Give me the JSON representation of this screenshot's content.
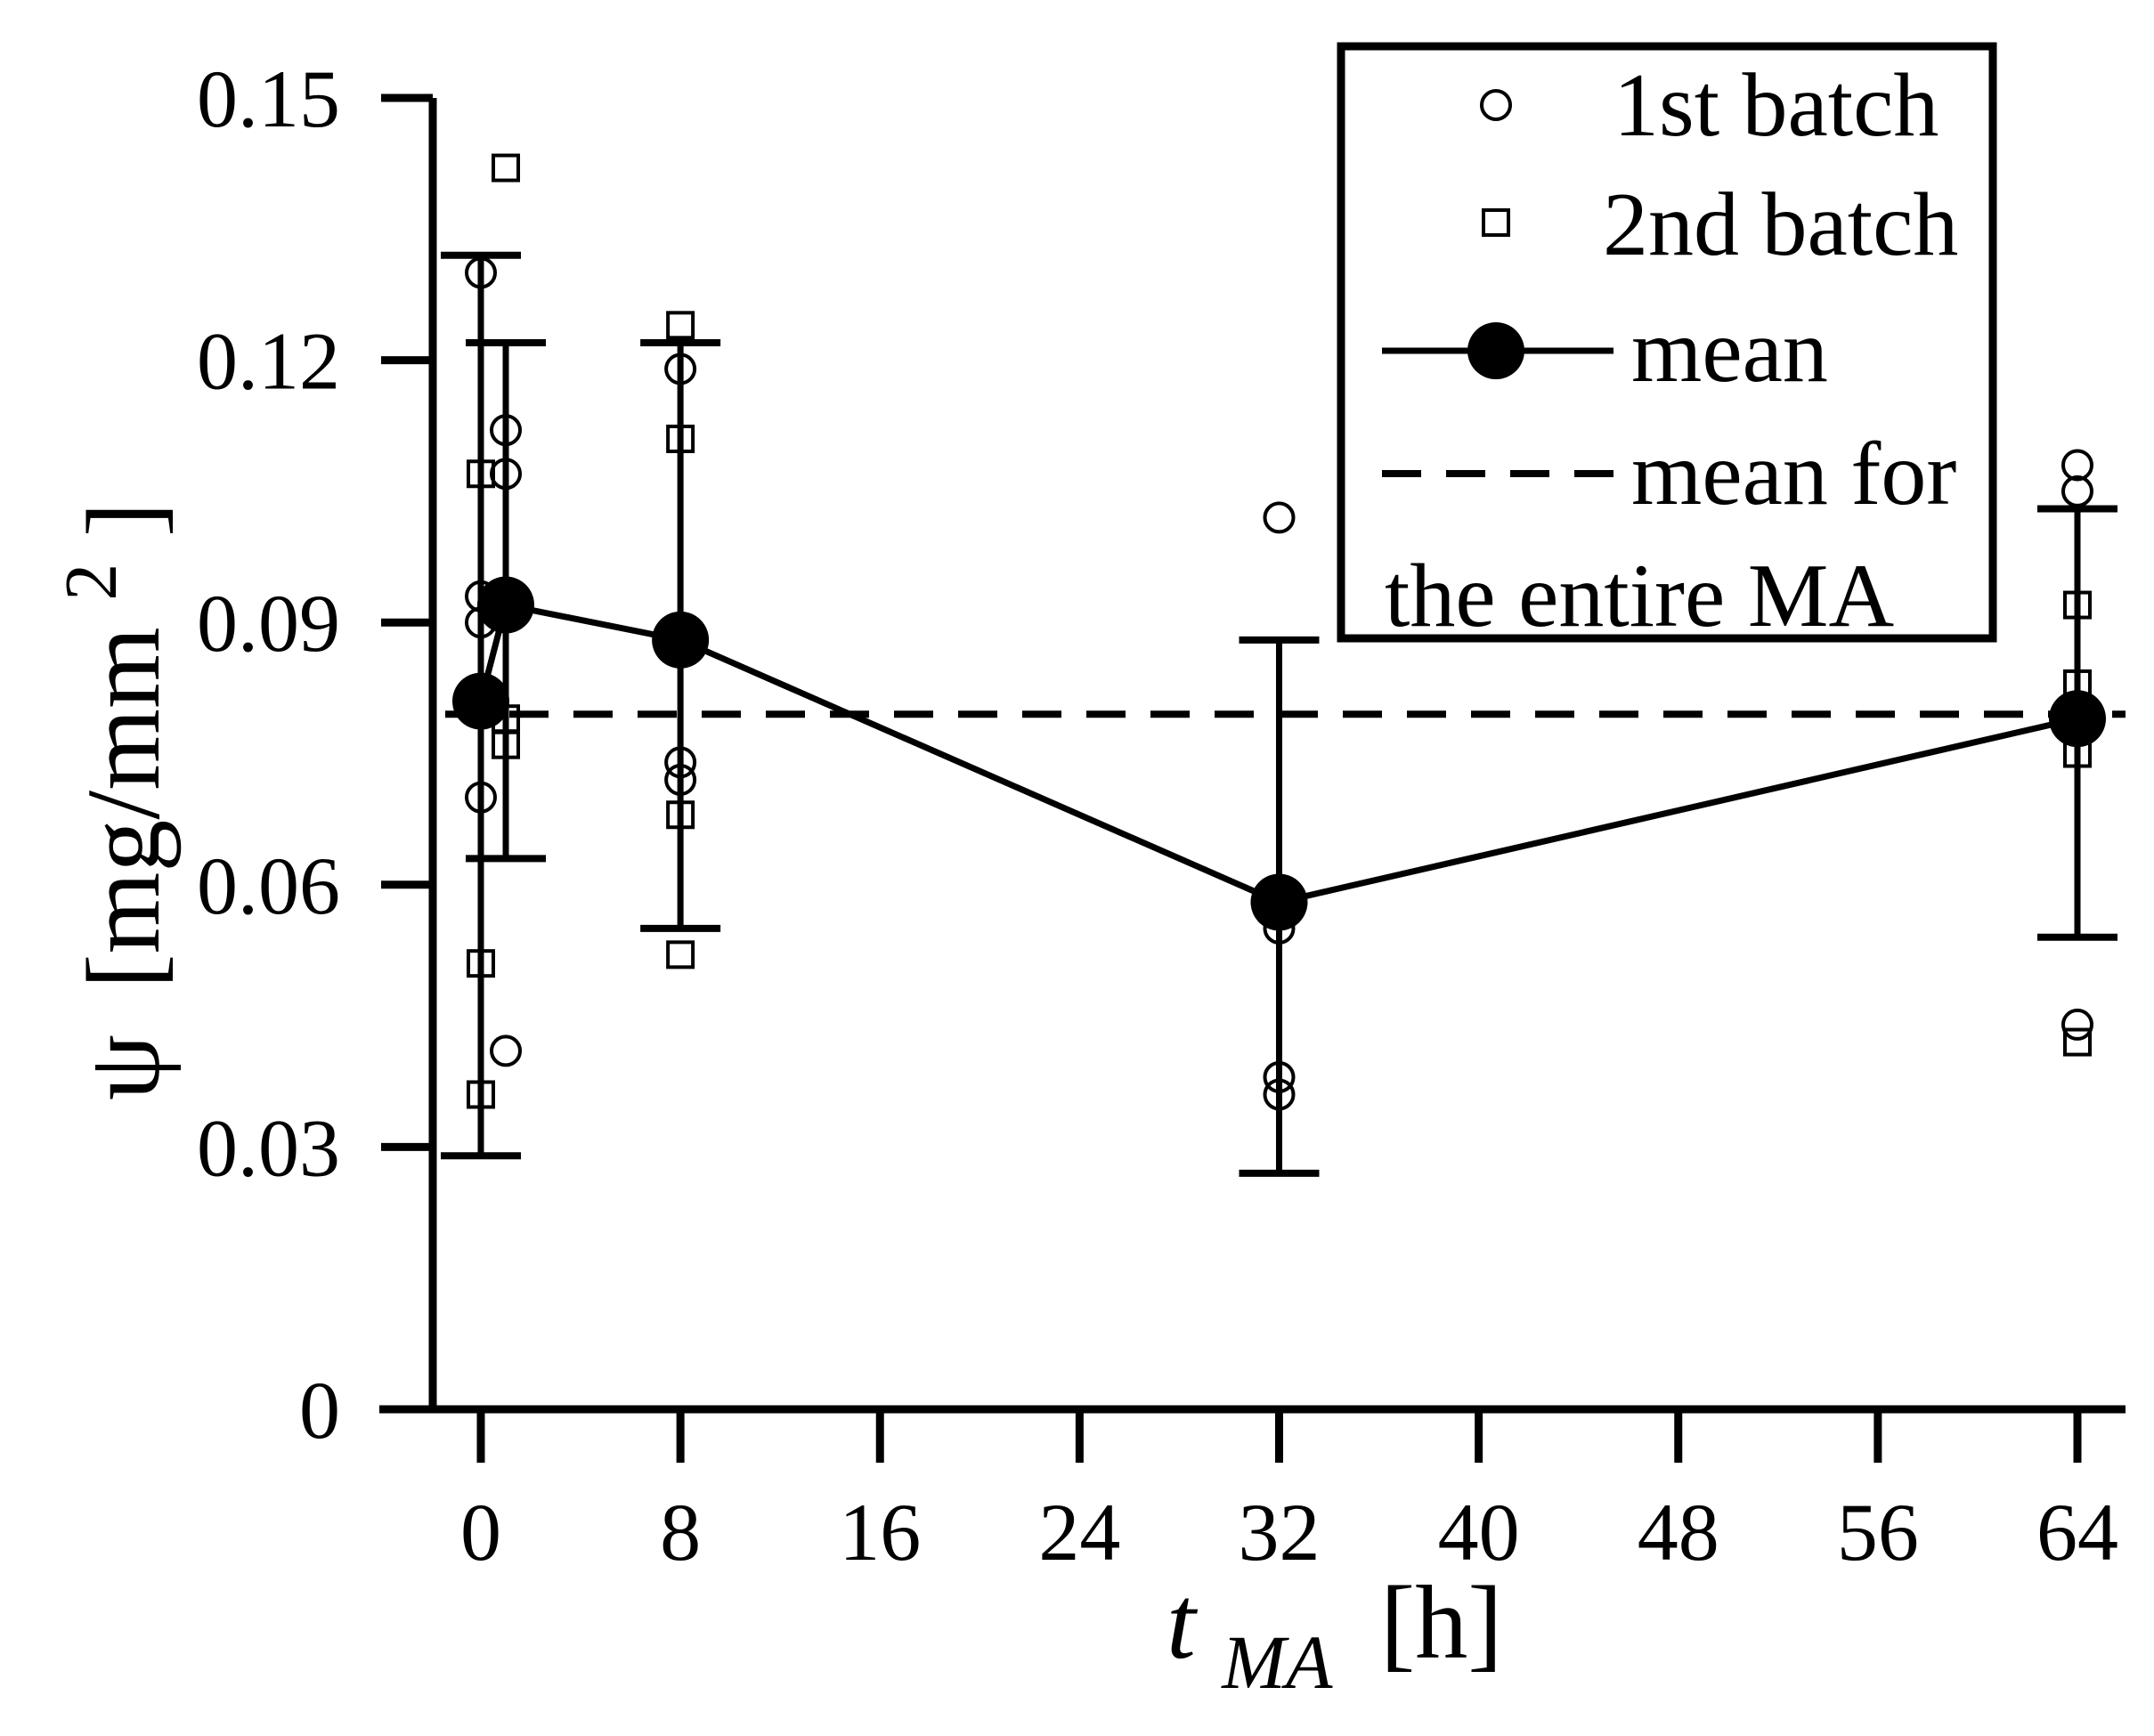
{
  "chart_data": {
    "type": "scatter",
    "title": "",
    "xlabel": {
      "main": "t",
      "sub": "MA",
      "unit": "[h]"
    },
    "ylabel": {
      "symbol": "ψ",
      "unit_open": "[mg/mm",
      "unit_sup": "2",
      "unit_close": "]"
    },
    "xlim": [
      -2.2,
      66
    ],
    "ylim": [
      0,
      0.15
    ],
    "xticks": [
      0,
      8,
      16,
      24,
      32,
      40,
      48,
      56,
      64
    ],
    "xtick_labels": [
      "0",
      "8",
      "16",
      "24",
      "32",
      "40",
      "48",
      "56",
      "64"
    ],
    "yticks": [
      0,
      0.03,
      0.06,
      0.09,
      0.12,
      0.15
    ],
    "ytick_labels": [
      "0",
      "0.03",
      "0.06",
      "0.09",
      "0.12",
      "0.15"
    ],
    "series": [
      {
        "name": "1st batch",
        "marker": "circle-open",
        "points": [
          [
            0,
            0.13
          ],
          [
            0,
            0.093
          ],
          [
            0,
            0.09
          ],
          [
            0,
            0.07
          ],
          [
            1,
            0.112
          ],
          [
            1,
            0.107
          ],
          [
            1,
            0.041
          ],
          [
            8,
            0.119
          ],
          [
            8,
            0.074
          ],
          [
            8,
            0.072
          ],
          [
            32,
            0.102
          ],
          [
            32,
            0.055
          ],
          [
            32,
            0.038
          ],
          [
            32,
            0.036
          ],
          [
            64,
            0.108
          ],
          [
            64,
            0.105
          ],
          [
            64,
            0.044
          ]
        ]
      },
      {
        "name": "2nd batch",
        "marker": "square-open",
        "points": [
          [
            0,
            0.107
          ],
          [
            0,
            0.051
          ],
          [
            0,
            0.036
          ],
          [
            1,
            0.142
          ],
          [
            1,
            0.092
          ],
          [
            1,
            0.079
          ],
          [
            1,
            0.076
          ],
          [
            8,
            0.124
          ],
          [
            8,
            0.111
          ],
          [
            8,
            0.068
          ],
          [
            8,
            0.052
          ],
          [
            64,
            0.092
          ],
          [
            64,
            0.083
          ],
          [
            64,
            0.075
          ],
          [
            64,
            0.042
          ]
        ]
      },
      {
        "name": "mean",
        "marker": "circle-filled-line",
        "x": [
          0,
          1,
          8,
          32,
          64
        ],
        "y": [
          0.081,
          0.092,
          0.088,
          0.058,
          0.079
        ],
        "err_low": [
          0.029,
          0.063,
          0.055,
          0.027,
          0.054
        ],
        "err_high": [
          0.132,
          0.122,
          0.122,
          0.088,
          0.103
        ]
      },
      {
        "name": "mean for the entire MA",
        "marker": "dashed-line",
        "y": 0.0795
      }
    ],
    "legend": {
      "position": "top-right",
      "labels": [
        "1st batch",
        "2nd batch",
        "mean",
        "mean for",
        "the entire MA"
      ]
    },
    "grid": false
  }
}
